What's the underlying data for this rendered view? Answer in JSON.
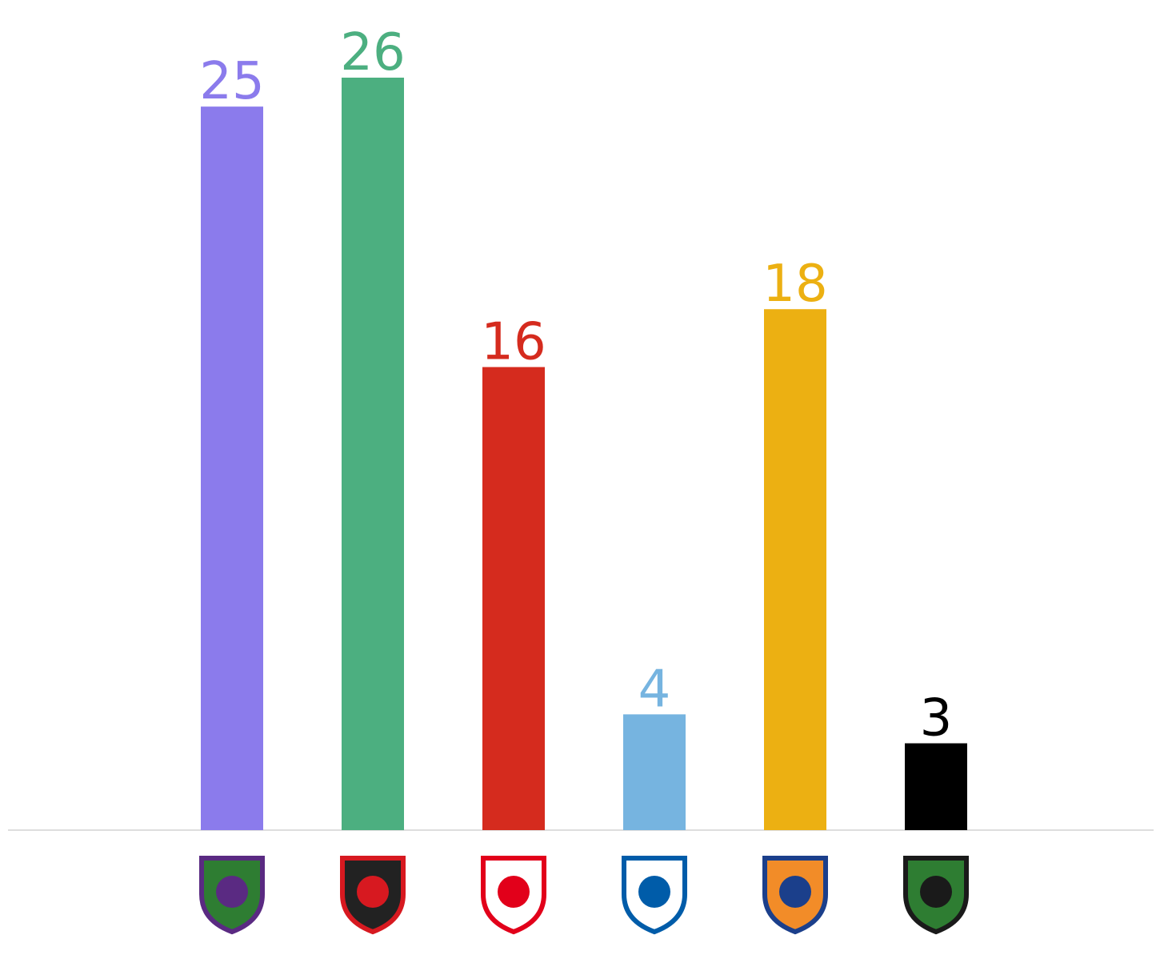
{
  "chart_data": {
    "type": "bar",
    "categories": [
      null,
      null,
      null,
      null,
      null,
      null
    ],
    "values": [
      25,
      26,
      16,
      4,
      18,
      3
    ],
    "colors": [
      "#8b7bec",
      "#4caf80",
      "#d52b1e",
      "#76b4e0",
      "#ecb012",
      "#000000"
    ]
  }
}
